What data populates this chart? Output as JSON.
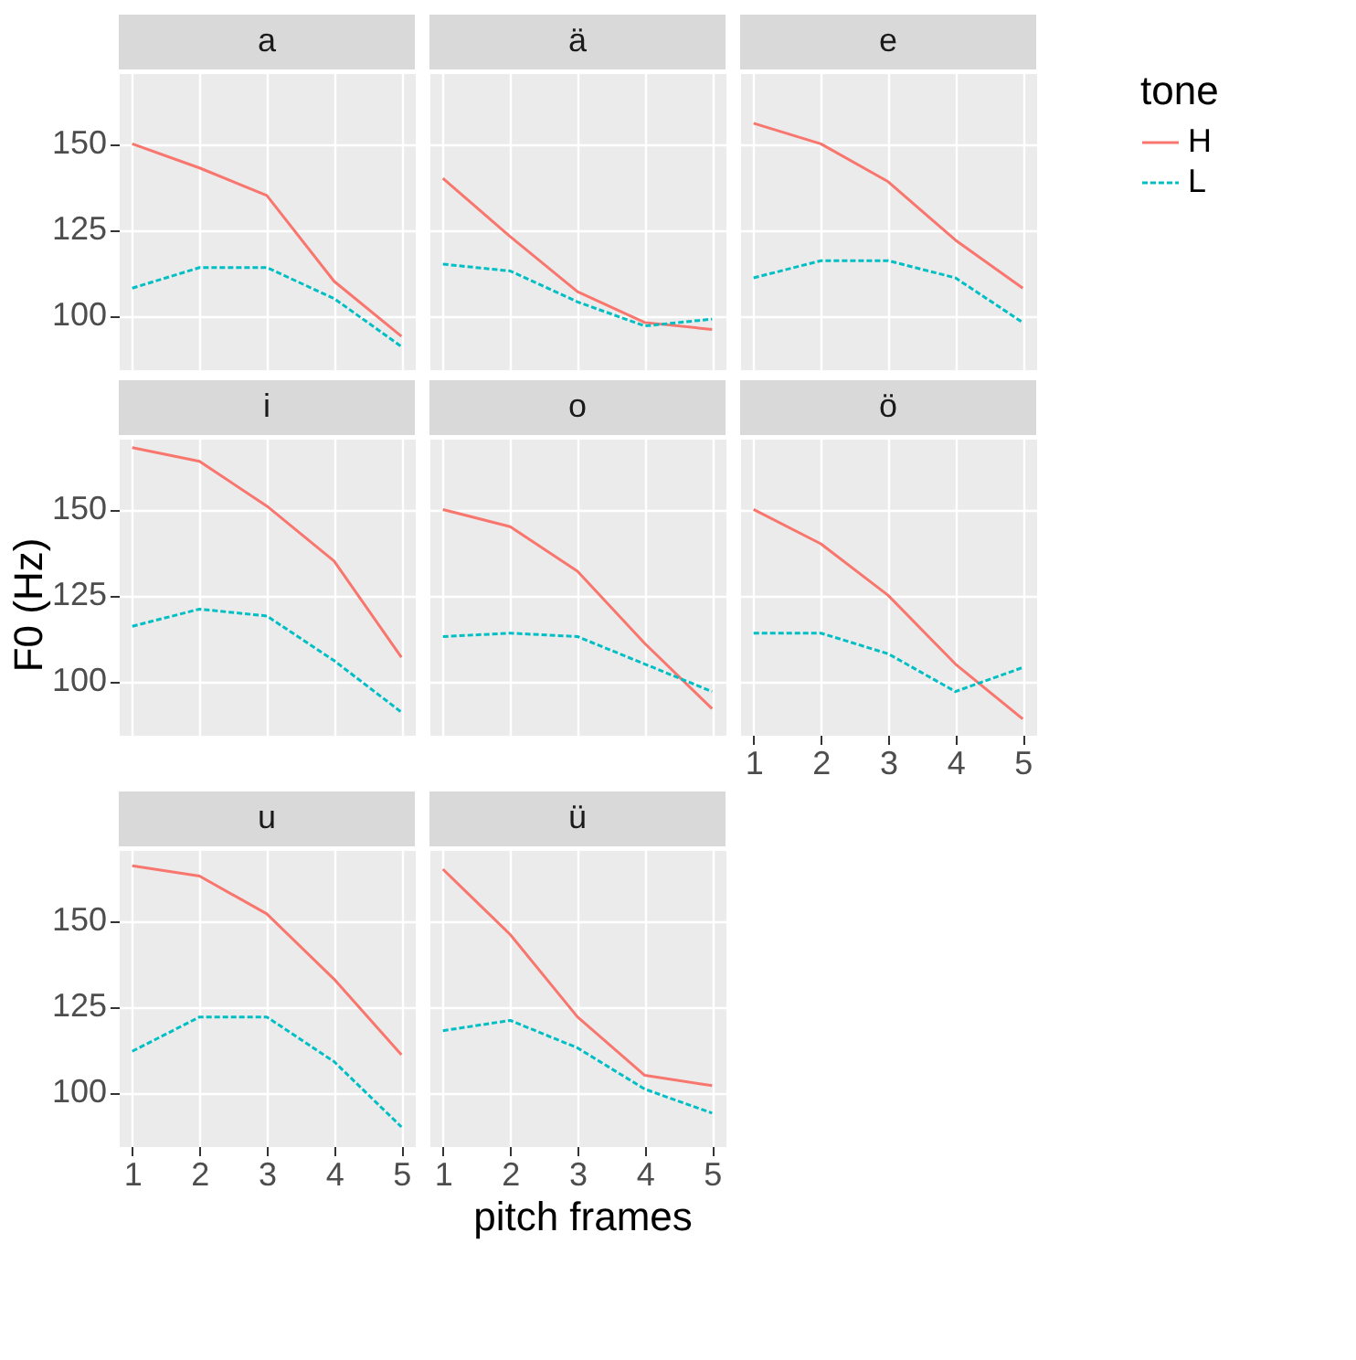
{
  "chart_data": [
    {
      "type": "line",
      "title": "a",
      "legend": "right",
      "legend_title": "tone",
      "x": [
        1,
        2,
        3,
        4,
        5
      ],
      "xlim": [
        0.8,
        5.2
      ],
      "xticks": [
        1,
        2,
        3,
        4,
        5
      ],
      "ylim": [
        84.4,
        170.6
      ],
      "yticks": [
        100,
        125,
        150
      ],
      "grid": true,
      "tick_labels": "y",
      "series": [
        {
          "name": "H",
          "color": "#f8766d",
          "line_style": "solid",
          "values": [
            150,
            143,
            135,
            110,
            94
          ]
        },
        {
          "name": "L",
          "color": "#00bfc4",
          "line_style": "dashed",
          "values": [
            108,
            114,
            114,
            105,
            91
          ]
        }
      ]
    },
    {
      "type": "line",
      "title": "ä",
      "x": [
        1,
        2,
        3,
        4,
        5
      ],
      "xlim": [
        0.8,
        5.2
      ],
      "xticks": [
        1,
        2,
        3,
        4,
        5
      ],
      "ylim": [
        84.4,
        170.6
      ],
      "yticks": [
        100,
        125,
        150
      ],
      "grid": true,
      "tick_labels": false,
      "series": [
        {
          "name": "H",
          "color": "#f8766d",
          "line_style": "solid",
          "values": [
            140,
            123,
            107,
            98,
            96
          ]
        },
        {
          "name": "L",
          "color": "#00bfc4",
          "line_style": "dashed",
          "values": [
            115,
            113,
            104,
            97,
            99
          ]
        }
      ]
    },
    {
      "type": "line",
      "title": "e",
      "x": [
        1,
        2,
        3,
        4,
        5
      ],
      "xlim": [
        0.8,
        5.2
      ],
      "xticks": [
        1,
        2,
        3,
        4,
        5
      ],
      "ylim": [
        84.4,
        170.6
      ],
      "yticks": [
        100,
        125,
        150
      ],
      "grid": true,
      "tick_labels": false,
      "series": [
        {
          "name": "H",
          "color": "#f8766d",
          "line_style": "solid",
          "values": [
            156,
            150,
            139,
            122,
            108
          ]
        },
        {
          "name": "L",
          "color": "#00bfc4",
          "line_style": "dashed",
          "values": [
            111,
            116,
            116,
            111,
            98
          ]
        }
      ]
    },
    {
      "type": "line",
      "title": "i",
      "ylabel": "F0 (Hz)",
      "x": [
        1,
        2,
        3,
        4,
        5
      ],
      "xlim": [
        0.8,
        5.2
      ],
      "xticks": [
        1,
        2,
        3,
        4,
        5
      ],
      "ylim": [
        84.4,
        170.6
      ],
      "yticks": [
        100,
        125,
        150
      ],
      "grid": true,
      "tick_labels": "y",
      "series": [
        {
          "name": "H",
          "color": "#f8766d",
          "line_style": "solid",
          "values": [
            168,
            164,
            151,
            135,
            107
          ]
        },
        {
          "name": "L",
          "color": "#00bfc4",
          "line_style": "dashed",
          "values": [
            116,
            121,
            119,
            106,
            91
          ]
        }
      ]
    },
    {
      "type": "line",
      "title": "o",
      "x": [
        1,
        2,
        3,
        4,
        5
      ],
      "xlim": [
        0.8,
        5.2
      ],
      "xticks": [
        1,
        2,
        3,
        4,
        5
      ],
      "ylim": [
        84.4,
        170.6
      ],
      "yticks": [
        100,
        125,
        150
      ],
      "grid": true,
      "tick_labels": false,
      "series": [
        {
          "name": "H",
          "color": "#f8766d",
          "line_style": "solid",
          "values": [
            150,
            145,
            132,
            111,
            92
          ]
        },
        {
          "name": "L",
          "color": "#00bfc4",
          "line_style": "dashed",
          "values": [
            113,
            114,
            113,
            105,
            97
          ]
        }
      ]
    },
    {
      "type": "line",
      "title": "ö",
      "x": [
        1,
        2,
        3,
        4,
        5
      ],
      "xlim": [
        0.8,
        5.2
      ],
      "xticks": [
        1,
        2,
        3,
        4,
        5
      ],
      "ylim": [
        84.4,
        170.6
      ],
      "yticks": [
        100,
        125,
        150
      ],
      "grid": true,
      "tick_labels": "x",
      "series": [
        {
          "name": "H",
          "color": "#f8766d",
          "line_style": "solid",
          "values": [
            150,
            140,
            125,
            105,
            89
          ]
        },
        {
          "name": "L",
          "color": "#00bfc4",
          "line_style": "dashed",
          "values": [
            114,
            114,
            108,
            97,
            104
          ]
        }
      ]
    },
    {
      "type": "line",
      "title": "u",
      "x": [
        1,
        2,
        3,
        4,
        5
      ],
      "xlim": [
        0.8,
        5.2
      ],
      "xticks": [
        1,
        2,
        3,
        4,
        5
      ],
      "ylim": [
        84.4,
        170.6
      ],
      "yticks": [
        100,
        125,
        150
      ],
      "grid": true,
      "series": [
        {
          "name": "H",
          "color": "#f8766d",
          "line_style": "solid",
          "values": [
            166,
            163,
            152,
            133,
            111
          ]
        },
        {
          "name": "L",
          "color": "#00bfc4",
          "line_style": "dashed",
          "values": [
            112,
            122,
            122,
            109,
            90
          ]
        }
      ]
    },
    {
      "type": "line",
      "title": "ü",
      "xlabel": "pitch frames",
      "x": [
        1,
        2,
        3,
        4,
        5
      ],
      "xlim": [
        0.8,
        5.2
      ],
      "xticks": [
        1,
        2,
        3,
        4,
        5
      ],
      "ylim": [
        84.4,
        170.6
      ],
      "yticks": [
        100,
        125,
        150
      ],
      "grid": true,
      "tick_labels": "x",
      "series": [
        {
          "name": "H",
          "color": "#f8766d",
          "line_style": "solid",
          "values": [
            165,
            146,
            122,
            105,
            102
          ]
        },
        {
          "name": "L",
          "color": "#00bfc4",
          "line_style": "dashed",
          "values": [
            118,
            121,
            113,
            101,
            94
          ]
        }
      ]
    }
  ]
}
